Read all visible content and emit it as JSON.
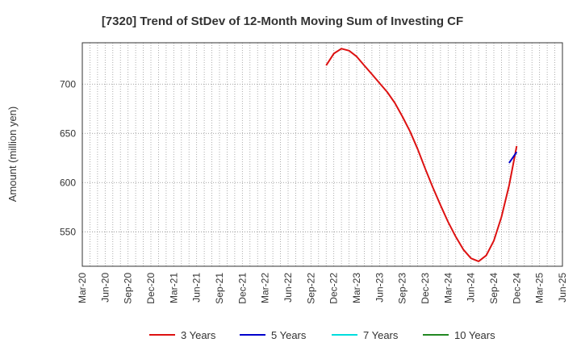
{
  "chart_data": {
    "type": "line",
    "title": "[7320]  Trend of StDev of 12-Month Moving Sum of Investing CF",
    "ylabel": "Amount (million yen)",
    "xlabel": "",
    "x_tick_labels": [
      "Mar-20",
      "Jun-20",
      "Sep-20",
      "Dec-20",
      "Mar-21",
      "Jun-21",
      "Sep-21",
      "Dec-21",
      "Mar-22",
      "Jun-22",
      "Sep-22",
      "Dec-22",
      "Mar-23",
      "Jun-23",
      "Sep-23",
      "Dec-23",
      "Mar-24",
      "Jun-24",
      "Sep-24",
      "Dec-24",
      "Mar-25",
      "Jun-25"
    ],
    "y_ticks": [
      550,
      600,
      650,
      700
    ],
    "ylim": [
      515,
      742
    ],
    "grid": true,
    "legend_position": "bottom",
    "legend": [
      "3 Years",
      "5 Years",
      "7 Years",
      "10 Years"
    ],
    "colors": {
      "3 Years": "#dd1111",
      "5 Years": "#0000cc",
      "7 Years": "#00dddd",
      "10 Years": "#228822"
    },
    "series": [
      {
        "name": "3 Years",
        "x": [
          "Nov-22",
          "Dec-22",
          "Jan-23",
          "Feb-23",
          "Mar-23",
          "Apr-23",
          "May-23",
          "Jun-23",
          "Jul-23",
          "Aug-23",
          "Sep-23",
          "Oct-23",
          "Nov-23",
          "Dec-23",
          "Jan-24",
          "Feb-24",
          "Mar-24",
          "Apr-24",
          "May-24",
          "Jun-24",
          "Jul-24",
          "Aug-24",
          "Sep-24",
          "Oct-24",
          "Nov-24",
          "Dec-24"
        ],
        "values": [
          719,
          731,
          736,
          734,
          728,
          719,
          710,
          701,
          692,
          681,
          667,
          652,
          634,
          614,
          595,
          577,
          560,
          545,
          532,
          523,
          520,
          526,
          541,
          565,
          597,
          637
        ]
      },
      {
        "name": "5 Years",
        "x": [
          "Nov-24",
          "Dec-24"
        ],
        "values": [
          620,
          631
        ]
      },
      {
        "name": "7 Years",
        "x": [],
        "values": []
      },
      {
        "name": "10 Years",
        "x": [],
        "values": []
      }
    ]
  }
}
